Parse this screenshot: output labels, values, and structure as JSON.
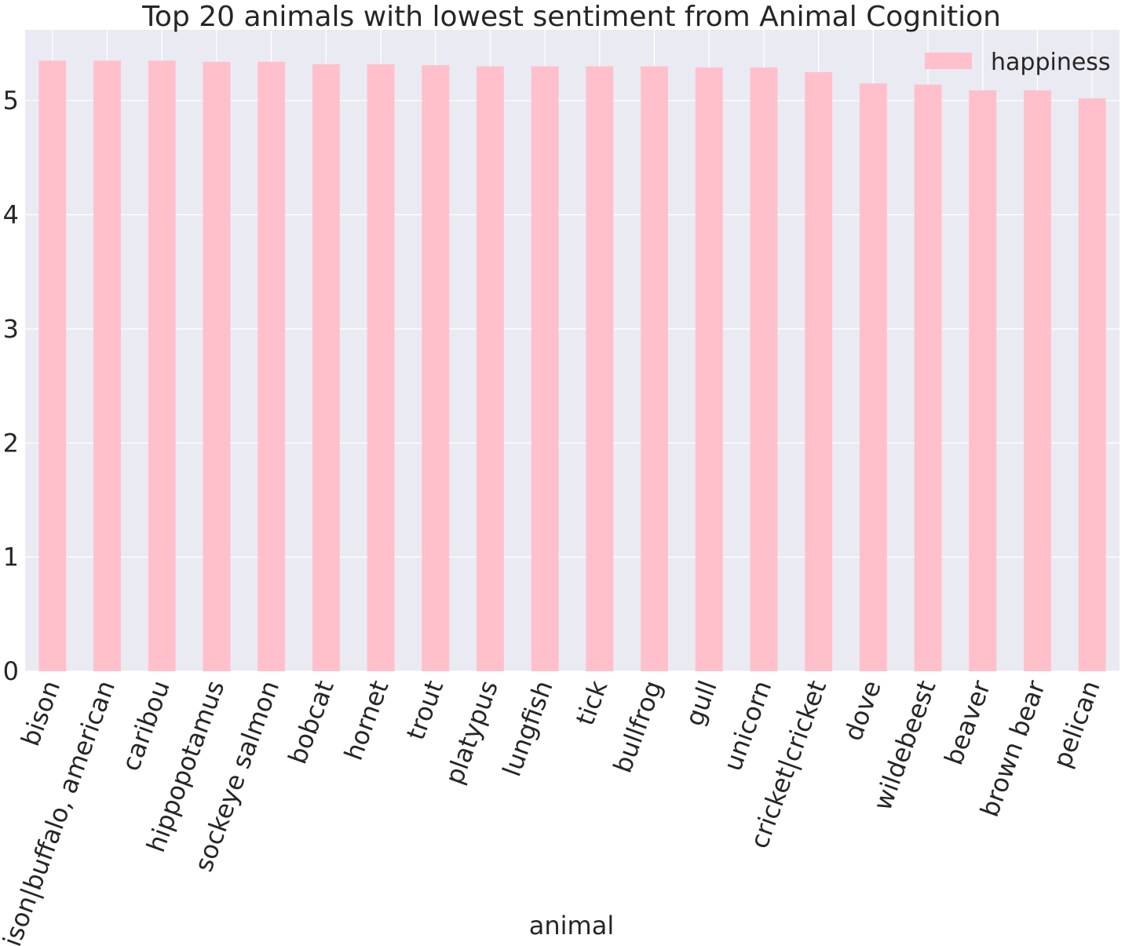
{
  "chart_data": {
    "type": "bar",
    "title": "Top 20 animals with lowest sentiment from Animal Cognition",
    "xlabel": "animal",
    "ylabel": "",
    "categories": [
      "bison",
      "bison|buffalo, american",
      "caribou",
      "hippopotamus",
      "sockeye salmon",
      "bobcat",
      "hornet",
      "trout",
      "platypus",
      "lungfish",
      "tick",
      "bullfrog",
      "gull",
      "unicorn",
      "cricket|cricket",
      "dove",
      "wildebeest",
      "beaver",
      "brown bear",
      "pelican"
    ],
    "series": [
      {
        "name": "happiness",
        "values": [
          5.35,
          5.35,
          5.35,
          5.34,
          5.34,
          5.32,
          5.32,
          5.31,
          5.3,
          5.3,
          5.3,
          5.3,
          5.29,
          5.29,
          5.25,
          5.15,
          5.14,
          5.09,
          5.09,
          5.02
        ]
      }
    ],
    "ylim": [
      0,
      5.62
    ],
    "yticks": [
      "0",
      "1",
      "2",
      "3",
      "4",
      "5"
    ],
    "grid": true,
    "legend": "top-right",
    "colors": {
      "bar": "#ffc0cb",
      "background": "#eaeaf2",
      "grid": "#ffffff"
    }
  }
}
